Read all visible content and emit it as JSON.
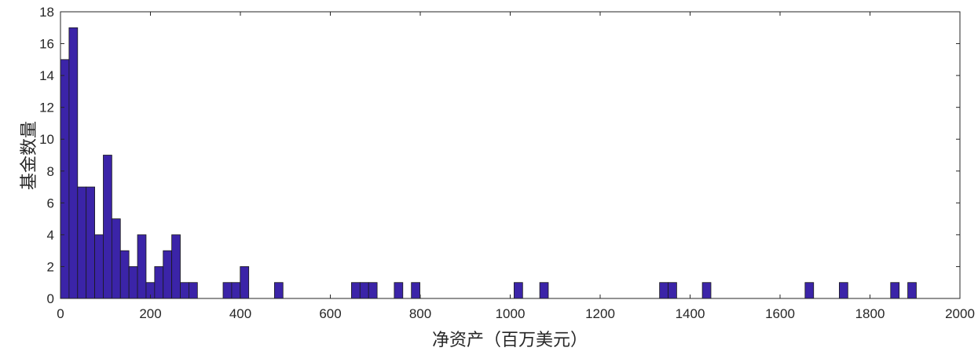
{
  "chart_data": {
    "type": "bar",
    "subtype": "histogram",
    "xlabel": "净资产（百万美元）",
    "ylabel": "基金数量",
    "xlim": [
      0,
      2000
    ],
    "ylim": [
      0,
      18
    ],
    "xticks": [
      0,
      200,
      400,
      600,
      800,
      1000,
      1200,
      1400,
      1600,
      1800,
      2000
    ],
    "yticks": [
      0,
      2,
      4,
      6,
      8,
      10,
      12,
      14,
      16,
      18
    ],
    "grid": false,
    "bin_start": 0,
    "bin_width": 19.03,
    "counts": [
      15,
      17,
      7,
      7,
      4,
      9,
      5,
      3,
      2,
      4,
      1,
      2,
      3,
      4,
      1,
      1,
      0,
      0,
      0,
      1,
      1,
      2,
      0,
      0,
      0,
      1,
      0,
      0,
      0,
      0,
      0,
      0,
      0,
      0,
      1,
      1,
      1,
      0,
      0,
      1,
      0,
      1,
      0,
      0,
      0,
      0,
      0,
      0,
      0,
      0,
      0,
      0,
      0,
      1,
      0,
      0,
      1,
      0,
      0,
      0,
      0,
      0,
      0,
      0,
      0,
      0,
      0,
      0,
      0,
      0,
      1,
      1,
      0,
      0,
      0,
      1,
      0,
      0,
      0,
      0,
      0,
      0,
      0,
      0,
      0,
      0,
      0,
      1,
      0,
      0,
      0,
      1,
      0,
      0,
      0,
      0,
      0,
      1,
      0,
      1
    ],
    "bar_color": "#3b24a8",
    "edge_color": "#1a1a1a"
  }
}
